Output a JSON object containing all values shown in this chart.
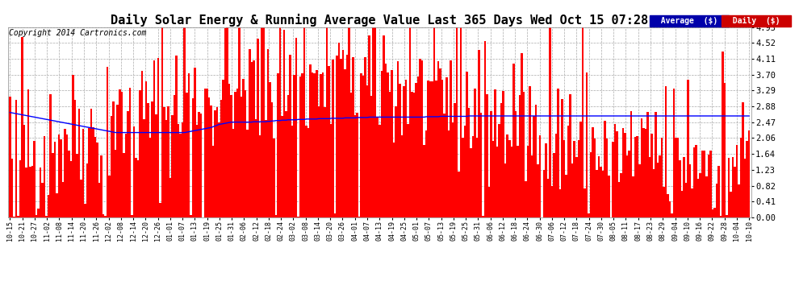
{
  "title": "Daily Solar Energy & Running Average Value Last 365 Days Wed Oct 15 07:28",
  "copyright": "Copyright 2014 Cartronics.com",
  "yticks": [
    0.0,
    0.41,
    0.82,
    1.23,
    1.64,
    2.06,
    2.47,
    2.88,
    3.29,
    3.7,
    4.11,
    4.52,
    4.93
  ],
  "ymax": 4.93,
  "bar_color": "#FF0000",
  "avg_color": "#0000FF",
  "bg_color": "#FFFFFF",
  "plot_bg_color": "#FFFFFF",
  "grid_color": "#AAAAAA",
  "title_fontsize": 11,
  "copyright_fontsize": 7,
  "legend_avg_bg": "#0000AA",
  "legend_daily_bg": "#CC0000",
  "legend_text_color": "#FFFFFF",
  "avg_line": [
    2.72,
    2.71,
    2.7,
    2.69,
    2.68,
    2.67,
    2.66,
    2.65,
    2.64,
    2.63,
    2.62,
    2.61,
    2.6,
    2.59,
    2.58,
    2.57,
    2.56,
    2.55,
    2.54,
    2.53,
    2.52,
    2.51,
    2.5,
    2.49,
    2.48,
    2.47,
    2.46,
    2.45,
    2.44,
    2.43,
    2.42,
    2.41,
    2.4,
    2.39,
    2.38,
    2.37,
    2.36,
    2.35,
    2.34,
    2.33,
    2.32,
    2.31,
    2.3,
    2.29,
    2.28,
    2.27,
    2.26,
    2.25,
    2.24,
    2.23,
    2.22,
    2.21,
    2.2,
    2.2,
    2.2,
    2.2,
    2.2,
    2.2,
    2.2,
    2.2,
    2.2,
    2.2,
    2.2,
    2.2,
    2.2,
    2.2,
    2.2,
    2.2,
    2.2,
    2.2,
    2.2,
    2.2,
    2.2,
    2.2,
    2.2,
    2.2,
    2.2,
    2.2,
    2.2,
    2.2,
    2.2,
    2.2,
    2.2,
    2.2,
    2.2,
    2.2,
    2.2,
    2.21,
    2.22,
    2.23,
    2.24,
    2.25,
    2.26,
    2.27,
    2.28,
    2.29,
    2.3,
    2.31,
    2.32,
    2.33,
    2.35,
    2.37,
    2.39,
    2.41,
    2.42,
    2.43,
    2.44,
    2.45,
    2.46,
    2.47,
    2.47,
    2.47,
    2.47,
    2.47,
    2.47,
    2.47,
    2.47,
    2.47,
    2.47,
    2.47,
    2.48,
    2.48,
    2.48,
    2.48,
    2.48,
    2.48,
    2.48,
    2.49,
    2.49,
    2.5,
    2.5,
    2.51,
    2.51,
    2.51,
    2.52,
    2.52,
    2.52,
    2.53,
    2.53,
    2.53,
    2.53,
    2.53,
    2.54,
    2.54,
    2.54,
    2.54,
    2.55,
    2.55,
    2.55,
    2.55,
    2.55,
    2.55,
    2.56,
    2.56,
    2.56,
    2.56,
    2.56,
    2.56,
    2.57,
    2.57,
    2.57,
    2.57,
    2.57,
    2.57,
    2.57,
    2.58,
    2.58,
    2.58,
    2.58,
    2.58,
    2.58,
    2.59,
    2.59,
    2.59,
    2.59,
    2.59,
    2.59,
    2.6,
    2.6,
    2.6,
    2.6,
    2.6,
    2.6,
    2.6,
    2.6,
    2.6,
    2.6,
    2.6,
    2.6,
    2.6,
    2.6,
    2.6,
    2.6,
    2.6,
    2.6,
    2.6,
    2.6,
    2.6,
    2.6,
    2.6,
    2.6,
    2.6,
    2.6,
    2.6,
    2.6,
    2.61,
    2.61,
    2.61,
    2.61,
    2.61,
    2.61,
    2.61,
    2.62,
    2.62,
    2.62,
    2.62,
    2.62,
    2.62,
    2.62,
    2.62,
    2.62,
    2.62,
    2.62,
    2.62,
    2.62,
    2.62,
    2.63,
    2.63,
    2.63,
    2.63,
    2.63,
    2.63,
    2.63,
    2.63,
    2.63,
    2.63,
    2.63,
    2.63,
    2.63,
    2.63,
    2.63,
    2.63,
    2.63,
    2.63,
    2.63,
    2.63,
    2.63,
    2.63,
    2.63,
    2.63,
    2.63,
    2.63,
    2.63,
    2.63,
    2.63,
    2.63,
    2.63,
    2.63,
    2.63,
    2.63,
    2.63,
    2.63,
    2.63,
    2.63,
    2.63,
    2.63,
    2.63,
    2.63,
    2.63,
    2.63,
    2.63,
    2.63,
    2.63,
    2.63,
    2.63,
    2.63,
    2.63,
    2.63,
    2.63,
    2.63,
    2.63,
    2.63,
    2.63,
    2.63,
    2.63,
    2.63,
    2.63,
    2.63,
    2.63,
    2.63,
    2.63,
    2.63,
    2.63,
    2.63,
    2.63,
    2.63,
    2.63,
    2.63,
    2.63,
    2.63,
    2.63,
    2.63,
    2.63,
    2.63,
    2.63,
    2.63,
    2.63,
    2.63,
    2.63,
    2.63,
    2.63,
    2.63,
    2.63,
    2.63,
    2.63,
    2.63,
    2.63,
    2.63,
    2.63,
    2.63,
    2.63,
    2.63,
    2.63,
    2.63,
    2.63,
    2.63,
    2.63,
    2.63,
    2.63,
    2.63,
    2.63,
    2.63,
    2.63,
    2.63,
    2.63,
    2.63,
    2.63,
    2.63,
    2.63,
    2.63,
    2.63,
    2.63,
    2.63,
    2.63,
    2.63,
    2.63,
    2.63,
    2.63,
    2.63,
    2.63,
    2.63,
    2.63,
    2.63,
    2.63,
    2.63,
    2.63,
    2.63,
    2.63,
    2.63,
    2.63,
    2.63,
    2.63,
    2.63,
    2.63,
    2.63
  ],
  "xtick_labels": [
    "10-15",
    "10-21",
    "10-27",
    "11-02",
    "11-08",
    "11-14",
    "11-20",
    "11-26",
    "12-02",
    "12-08",
    "12-14",
    "12-20",
    "12-26",
    "01-01",
    "01-07",
    "01-13",
    "01-19",
    "01-25",
    "01-31",
    "02-06",
    "02-12",
    "02-18",
    "02-24",
    "03-02",
    "03-08",
    "03-14",
    "03-20",
    "03-26",
    "04-01",
    "04-07",
    "04-13",
    "04-19",
    "04-25",
    "05-01",
    "05-07",
    "05-13",
    "05-19",
    "05-25",
    "05-31",
    "06-06",
    "06-12",
    "06-18",
    "06-24",
    "06-30",
    "07-06",
    "07-12",
    "07-18",
    "07-24",
    "07-30",
    "08-05",
    "08-11",
    "08-17",
    "08-23",
    "08-29",
    "09-04",
    "09-10",
    "09-16",
    "09-22",
    "09-28",
    "10-04",
    "10-10"
  ]
}
